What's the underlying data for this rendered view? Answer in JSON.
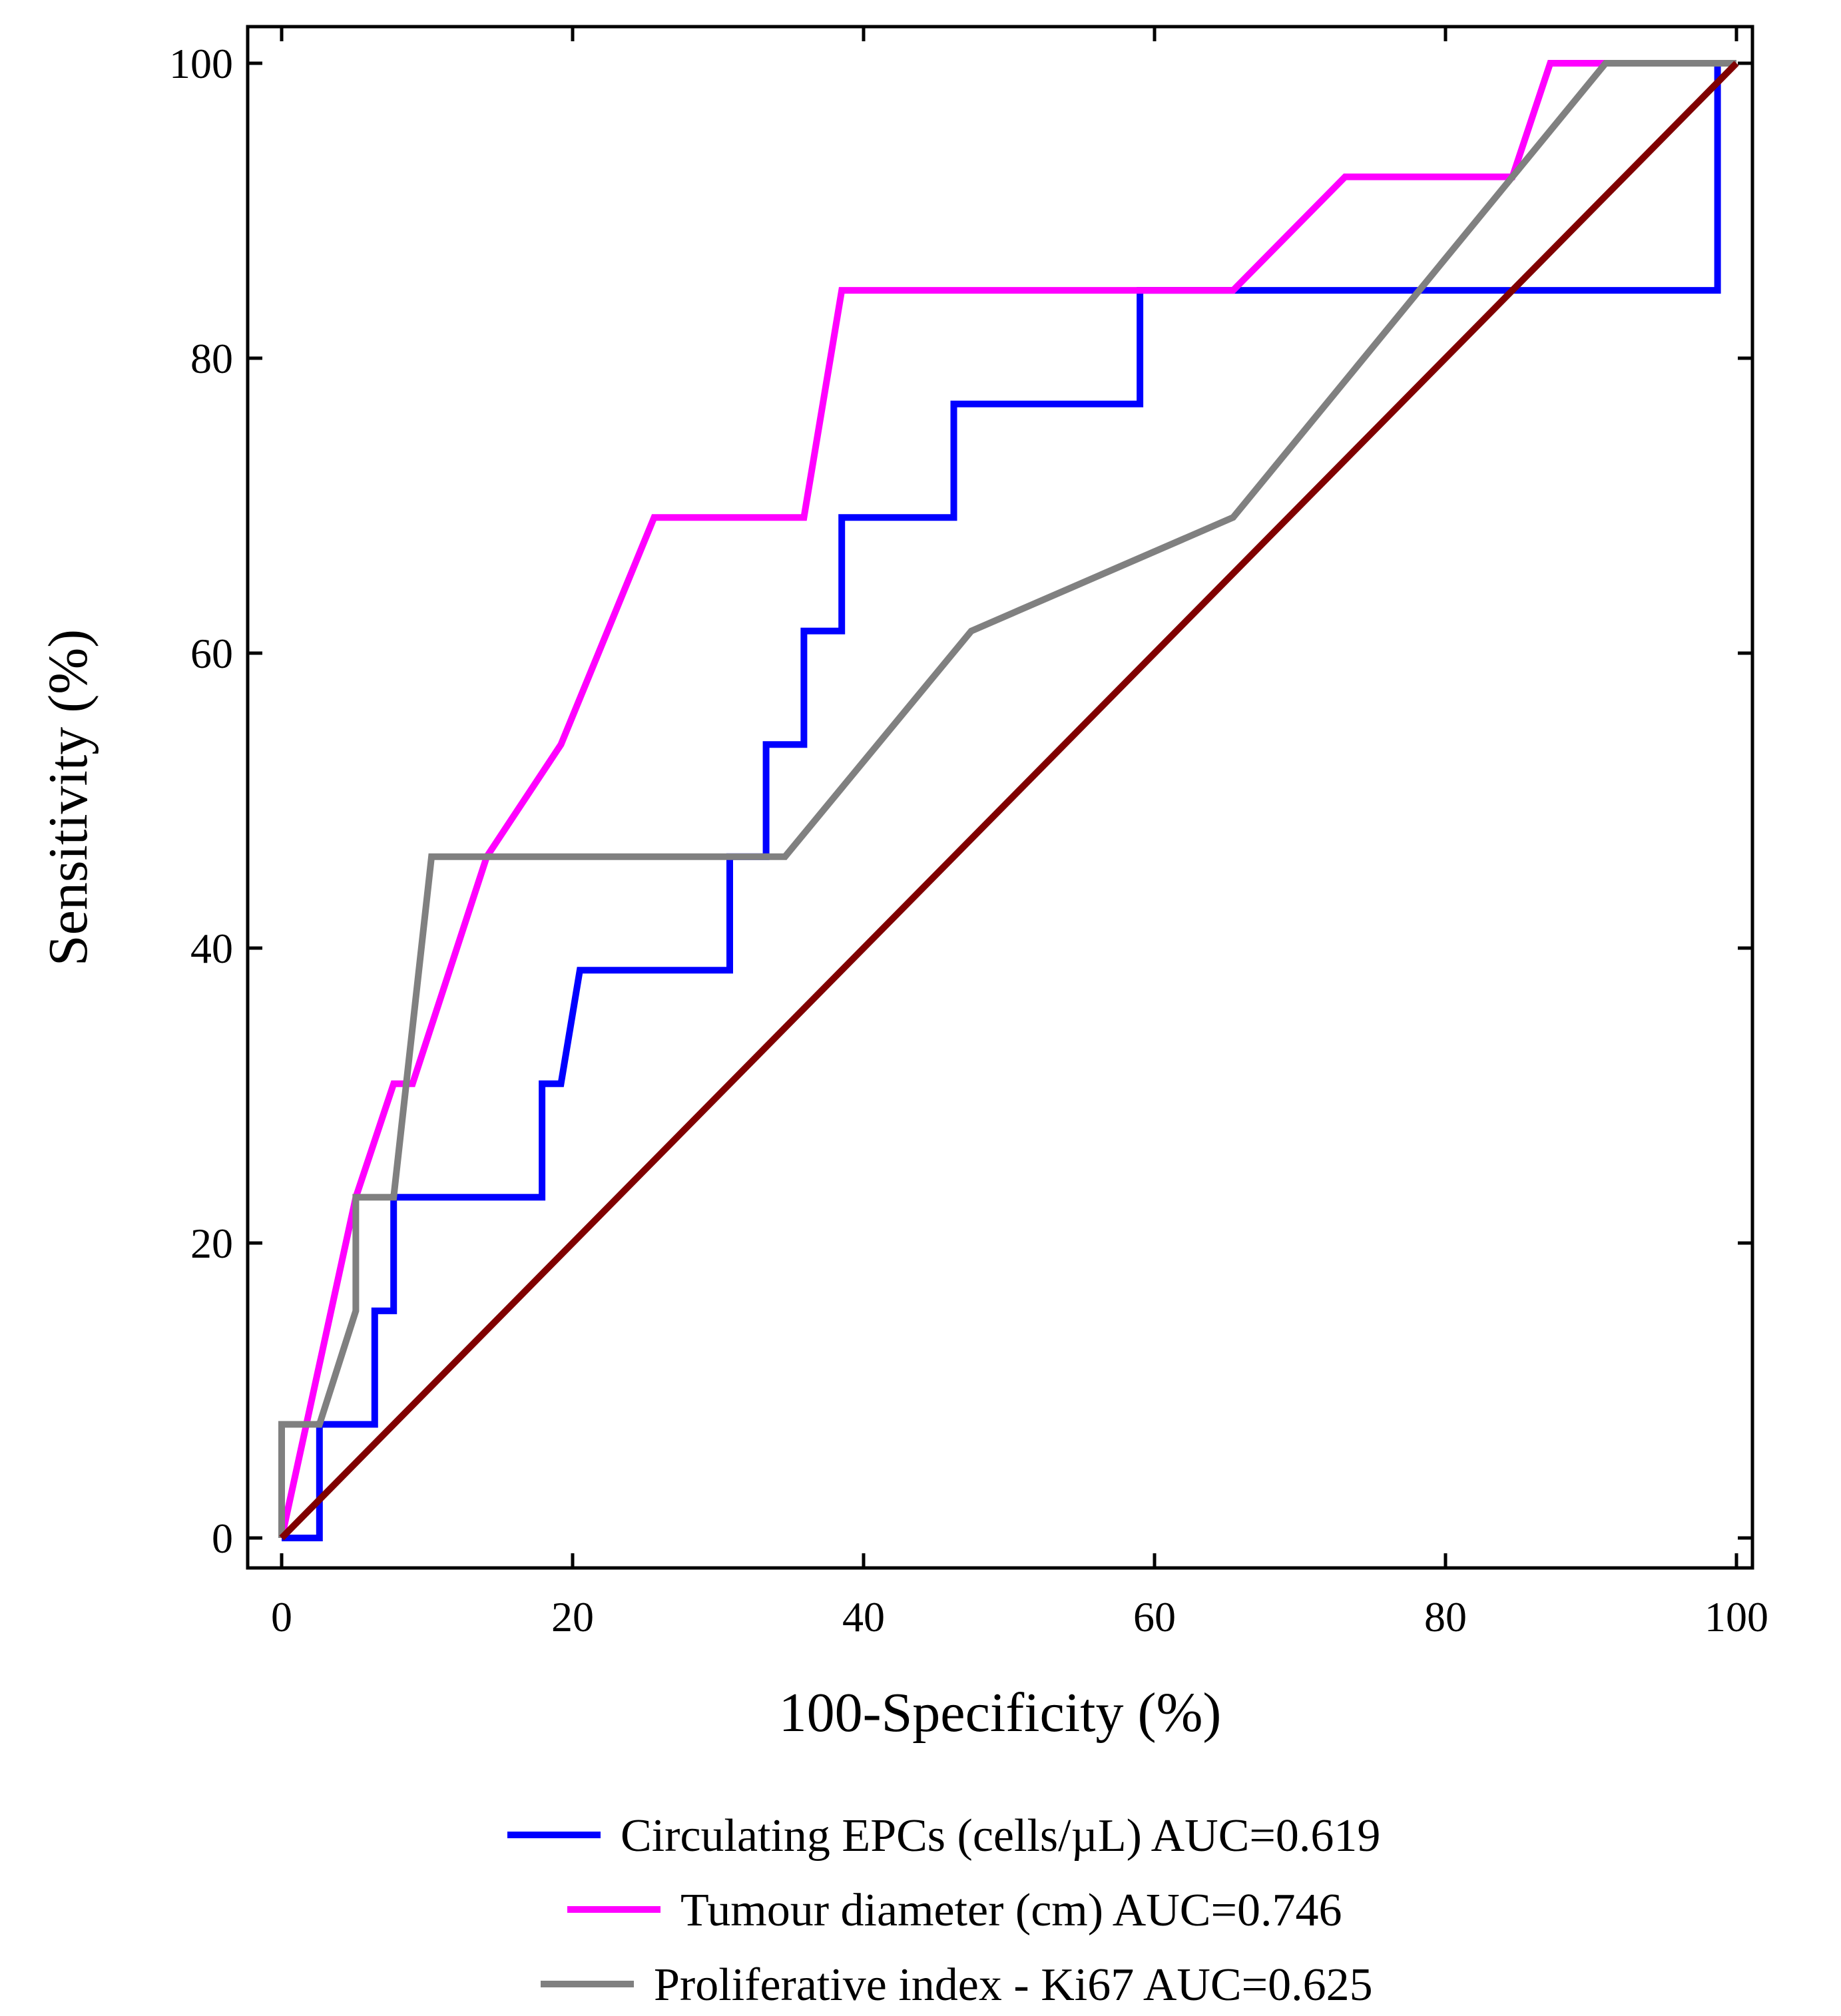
{
  "chart_data": {
    "type": "line",
    "title": "",
    "xlabel": "100-Specificity (%)",
    "ylabel": "Sensitivity (%)",
    "xlim": [
      0,
      100
    ],
    "ylim": [
      0,
      100
    ],
    "xticks": [
      "0",
      "20",
      "40",
      "60",
      "80",
      "100"
    ],
    "yticks": [
      "0",
      "20",
      "40",
      "60",
      "80",
      "100"
    ],
    "grid": false,
    "legend_position": "bottom",
    "series": [
      {
        "name": "Circulating EPCs (cells/µL) AUC=0.619",
        "color": "#0000FF",
        "points": [
          [
            0,
            0
          ],
          [
            2.6,
            0
          ],
          [
            2.6,
            7.7
          ],
          [
            6.4,
            7.7
          ],
          [
            6.4,
            15.4
          ],
          [
            7.7,
            15.4
          ],
          [
            7.7,
            23.1
          ],
          [
            17.9,
            23.1
          ],
          [
            17.9,
            30.8
          ],
          [
            19.2,
            30.8
          ],
          [
            20.5,
            38.5
          ],
          [
            30.8,
            38.5
          ],
          [
            30.8,
            46.2
          ],
          [
            33.3,
            46.2
          ],
          [
            33.3,
            53.8
          ],
          [
            35.9,
            53.8
          ],
          [
            35.9,
            61.5
          ],
          [
            38.5,
            61.5
          ],
          [
            38.5,
            69.2
          ],
          [
            46.2,
            69.2
          ],
          [
            46.2,
            76.9
          ],
          [
            59.0,
            76.9
          ],
          [
            59.0,
            84.6
          ],
          [
            98.7,
            84.6
          ],
          [
            98.7,
            100
          ],
          [
            100,
            100
          ]
        ]
      },
      {
        "name": "Tumour diameter (cm) AUC=0.746",
        "color": "#FF00FF",
        "points": [
          [
            0,
            0
          ],
          [
            5.1,
            23.1
          ],
          [
            7.7,
            30.8
          ],
          [
            9.0,
            30.8
          ],
          [
            14.1,
            46.2
          ],
          [
            19.2,
            53.8
          ],
          [
            25.6,
            69.2
          ],
          [
            35.9,
            69.2
          ],
          [
            38.5,
            84.6
          ],
          [
            65.4,
            84.6
          ],
          [
            73.1,
            92.3
          ],
          [
            84.6,
            92.3
          ],
          [
            87.2,
            100
          ],
          [
            100,
            100
          ]
        ]
      },
      {
        "name": "Proliferative index - Ki67 AUC=0.625",
        "color": "#808080",
        "points": [
          [
            0,
            0
          ],
          [
            0,
            7.7
          ],
          [
            2.6,
            7.7
          ],
          [
            5.1,
            15.4
          ],
          [
            5.1,
            23.1
          ],
          [
            7.7,
            23.1
          ],
          [
            10.3,
            46.2
          ],
          [
            34.6,
            46.2
          ],
          [
            47.4,
            61.5
          ],
          [
            65.4,
            69.2
          ],
          [
            84.6,
            92.3
          ],
          [
            91.0,
            100
          ],
          [
            100,
            100
          ]
        ]
      },
      {
        "color": "#800000",
        "points": [
          [
            0,
            0
          ],
          [
            100,
            100
          ]
        ]
      }
    ]
  }
}
